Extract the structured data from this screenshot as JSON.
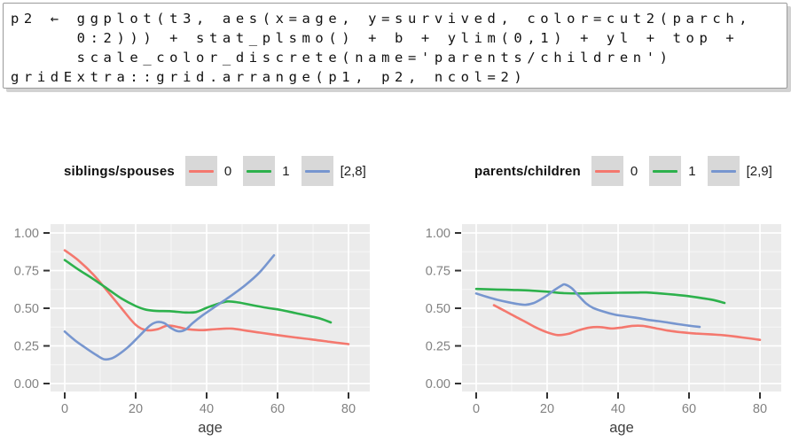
{
  "code_block": {
    "lines": [
      "p2 ← ggplot(t3, aes(x=age, y=survived, color=cut2(parch,",
      "     0:2))) + stat_plsmo() + b + ylim(0,1) + yl + top +",
      "     scale_color_discrete(name='parents/children')",
      "gridExtra::grid.arrange(p1, p2, ncol=2)"
    ]
  },
  "colors": {
    "panel_bg": "#EBEBEB",
    "grid_major": "#FFFFFF",
    "grid_minor": "#F7F7F7",
    "tick_mark": "#333333",
    "tick_label": "#828282",
    "axis_title": "#3F3F3F",
    "legend_swatch": "#D8D8D8",
    "legend_text": "#1C1C1C"
  },
  "chart_data": [
    {
      "type": "line",
      "legend_title": "siblings/spouses",
      "legend_position": "top",
      "xlabel": "age",
      "ylabel": "",
      "xlim": [
        0,
        80
      ],
      "ylim": [
        0,
        1
      ],
      "xticks": [
        0,
        20,
        40,
        60,
        80
      ],
      "yticks": [
        0,
        0.25,
        0.5,
        0.75,
        1
      ],
      "ytick_labels": [
        "0.00",
        "0.25",
        "0.50",
        "0.75",
        "1.00"
      ],
      "xminor": [
        10,
        30,
        50,
        70
      ],
      "yminor": [
        0.125,
        0.375,
        0.625,
        0.875
      ],
      "grid": true,
      "series": [
        {
          "name": "0",
          "color": "#F4786E",
          "points": [
            [
              0,
              0.885
            ],
            [
              4,
              0.815
            ],
            [
              8,
              0.725
            ],
            [
              12,
              0.615
            ],
            [
              16,
              0.5
            ],
            [
              20,
              0.39
            ],
            [
              23,
              0.355
            ],
            [
              26,
              0.36
            ],
            [
              29,
              0.385
            ],
            [
              32,
              0.375
            ],
            [
              35,
              0.36
            ],
            [
              39,
              0.355
            ],
            [
              43,
              0.362
            ],
            [
              47,
              0.365
            ],
            [
              51,
              0.352
            ],
            [
              55,
              0.338
            ],
            [
              60,
              0.322
            ],
            [
              65,
              0.306
            ],
            [
              70,
              0.292
            ],
            [
              75,
              0.276
            ],
            [
              80,
              0.262
            ]
          ]
        },
        {
          "name": "1",
          "color": "#2DB14C",
          "points": [
            [
              0,
              0.82
            ],
            [
              4,
              0.755
            ],
            [
              8,
              0.695
            ],
            [
              12,
              0.63
            ],
            [
              16,
              0.565
            ],
            [
              20,
              0.515
            ],
            [
              23,
              0.49
            ],
            [
              26,
              0.482
            ],
            [
              30,
              0.48
            ],
            [
              34,
              0.472
            ],
            [
              37,
              0.475
            ],
            [
              40,
              0.503
            ],
            [
              43,
              0.528
            ],
            [
              46,
              0.545
            ],
            [
              49,
              0.538
            ],
            [
              53,
              0.52
            ],
            [
              57,
              0.503
            ],
            [
              61,
              0.488
            ],
            [
              65,
              0.468
            ],
            [
              69,
              0.448
            ],
            [
              72,
              0.432
            ],
            [
              75,
              0.406
            ]
          ]
        },
        {
          "name": "[2,8]",
          "color": "#7796CF",
          "points": [
            [
              0,
              0.345
            ],
            [
              3,
              0.285
            ],
            [
              6,
              0.235
            ],
            [
              9,
              0.188
            ],
            [
              11,
              0.162
            ],
            [
              13,
              0.165
            ],
            [
              15,
              0.19
            ],
            [
              18,
              0.245
            ],
            [
              21,
              0.315
            ],
            [
              24,
              0.385
            ],
            [
              26,
              0.408
            ],
            [
              28,
              0.402
            ],
            [
              30,
              0.368
            ],
            [
              32,
              0.347
            ],
            [
              34,
              0.357
            ],
            [
              36,
              0.4
            ],
            [
              39,
              0.455
            ],
            [
              43,
              0.52
            ],
            [
              47,
              0.585
            ],
            [
              51,
              0.655
            ],
            [
              55,
              0.74
            ],
            [
              59,
              0.852
            ]
          ]
        }
      ]
    },
    {
      "type": "line",
      "legend_title": "parents/children",
      "legend_position": "top",
      "xlabel": "age",
      "ylabel": "",
      "xlim": [
        0,
        80
      ],
      "ylim": [
        0,
        1
      ],
      "xticks": [
        0,
        20,
        40,
        60,
        80
      ],
      "yticks": [
        0,
        0.25,
        0.5,
        0.75,
        1
      ],
      "ytick_labels": [
        "0.00",
        "0.25",
        "0.50",
        "0.75",
        "1.00"
      ],
      "xminor": [
        10,
        30,
        50,
        70
      ],
      "yminor": [
        0.125,
        0.375,
        0.625,
        0.875
      ],
      "grid": true,
      "series": [
        {
          "name": "0",
          "color": "#F4786E",
          "points": [
            [
              5,
              0.52
            ],
            [
              8,
              0.483
            ],
            [
              11,
              0.445
            ],
            [
              14,
              0.408
            ],
            [
              17,
              0.37
            ],
            [
              20,
              0.34
            ],
            [
              23,
              0.322
            ],
            [
              26,
              0.33
            ],
            [
              29,
              0.355
            ],
            [
              32,
              0.372
            ],
            [
              35,
              0.375
            ],
            [
              38,
              0.366
            ],
            [
              41,
              0.372
            ],
            [
              44,
              0.383
            ],
            [
              47,
              0.383
            ],
            [
              50,
              0.37
            ],
            [
              54,
              0.352
            ],
            [
              58,
              0.34
            ],
            [
              62,
              0.332
            ],
            [
              66,
              0.327
            ],
            [
              70,
              0.32
            ],
            [
              75,
              0.306
            ],
            [
              80,
              0.29
            ]
          ]
        },
        {
          "name": "1",
          "color": "#2DB14C",
          "points": [
            [
              0,
              0.628
            ],
            [
              5,
              0.625
            ],
            [
              10,
              0.622
            ],
            [
              15,
              0.618
            ],
            [
              20,
              0.61
            ],
            [
              25,
              0.6
            ],
            [
              30,
              0.598
            ],
            [
              35,
              0.601
            ],
            [
              40,
              0.603
            ],
            [
              45,
              0.604
            ],
            [
              48,
              0.605
            ],
            [
              52,
              0.598
            ],
            [
              56,
              0.59
            ],
            [
              60,
              0.58
            ],
            [
              64,
              0.566
            ],
            [
              67,
              0.554
            ],
            [
              70,
              0.535
            ]
          ]
        },
        {
          "name": "[2,9]",
          "color": "#7796CF",
          "points": [
            [
              0,
              0.598
            ],
            [
              3,
              0.576
            ],
            [
              6,
              0.556
            ],
            [
              9,
              0.54
            ],
            [
              12,
              0.527
            ],
            [
              14,
              0.523
            ],
            [
              16,
              0.533
            ],
            [
              18,
              0.556
            ],
            [
              20,
              0.585
            ],
            [
              22,
              0.62
            ],
            [
              24,
              0.65
            ],
            [
              25,
              0.658
            ],
            [
              27,
              0.632
            ],
            [
              29,
              0.58
            ],
            [
              31,
              0.532
            ],
            [
              33,
              0.502
            ],
            [
              36,
              0.477
            ],
            [
              39,
              0.458
            ],
            [
              42,
              0.447
            ],
            [
              45,
              0.437
            ],
            [
              48,
              0.425
            ],
            [
              51,
              0.415
            ],
            [
              54,
              0.405
            ],
            [
              57,
              0.394
            ],
            [
              60,
              0.384
            ],
            [
              63,
              0.376
            ]
          ]
        }
      ]
    }
  ]
}
